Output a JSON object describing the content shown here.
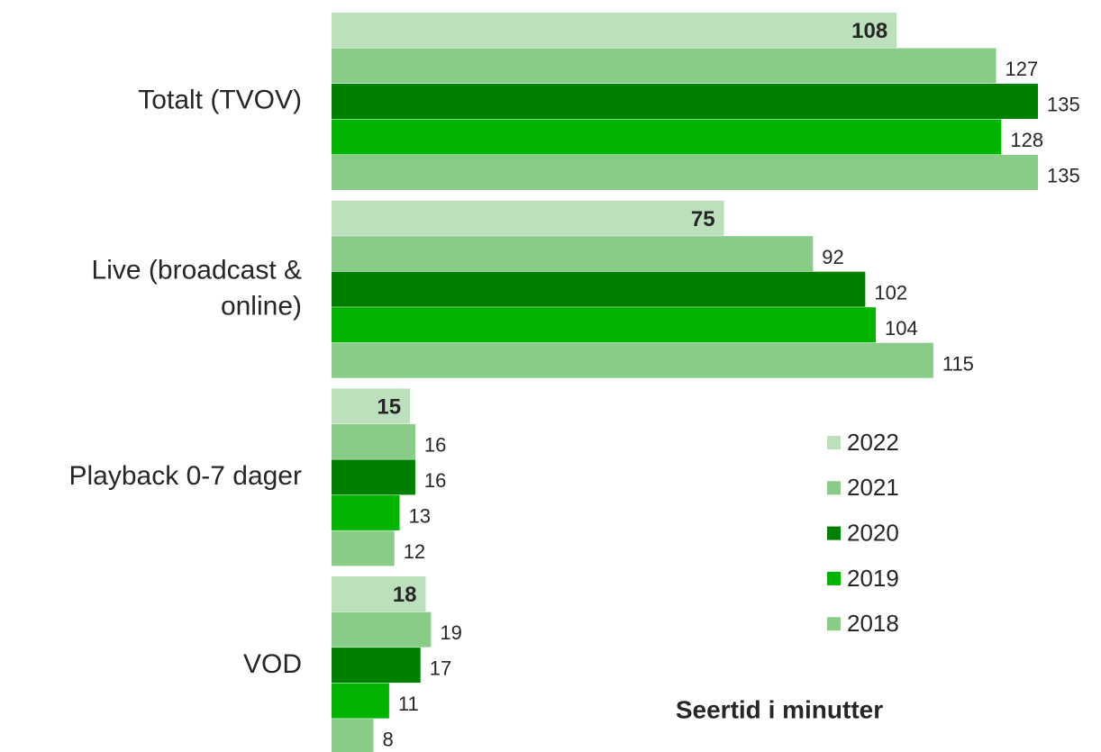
{
  "chart_data": {
    "type": "barh",
    "annotation": "Seertid i minutter",
    "categories": [
      "Totalt (TVOV)",
      "Live (broadcast & online)",
      "Playback 0-7 dager",
      "VOD"
    ],
    "series": [
      {
        "name": "2022",
        "color": "#bce0bc",
        "values": [
          108,
          75,
          15,
          18
        ]
      },
      {
        "name": "2021",
        "color": "#88cc88",
        "values": [
          127,
          92,
          16,
          19
        ]
      },
      {
        "name": "2020",
        "color": "#008000",
        "values": [
          135,
          102,
          16,
          17
        ]
      },
      {
        "name": "2019",
        "color": "#00b400",
        "values": [
          128,
          104,
          13,
          11
        ]
      },
      {
        "name": "2018",
        "color": "#88cc88",
        "values": [
          135,
          115,
          12,
          8
        ]
      }
    ],
    "legend": "right"
  }
}
